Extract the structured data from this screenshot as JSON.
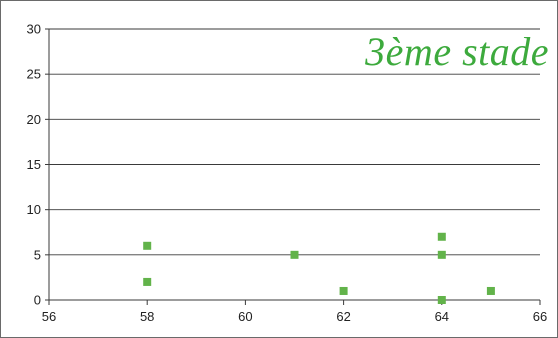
{
  "chart_data": {
    "type": "scatter",
    "title": "3ème  stade",
    "xlabel": "",
    "ylabel": "",
    "xlim": [
      56,
      66
    ],
    "ylim": [
      0,
      30
    ],
    "xticks": [
      56,
      58,
      60,
      62,
      64,
      66
    ],
    "yticks": [
      0,
      5,
      10,
      15,
      20,
      25,
      30
    ],
    "grid": "horizontal",
    "legend": "none",
    "series": [
      {
        "color": "#62b34a",
        "marker": "square",
        "points": [
          {
            "x": 58,
            "y": 6
          },
          {
            "x": 58,
            "y": 2
          },
          {
            "x": 61,
            "y": 5
          },
          {
            "x": 62,
            "y": 1
          },
          {
            "x": 64,
            "y": 7
          },
          {
            "x": 64,
            "y": 5
          },
          {
            "x": 64,
            "y": 0
          },
          {
            "x": 65,
            "y": 1
          }
        ]
      }
    ],
    "title_color": "#3daa3d"
  }
}
